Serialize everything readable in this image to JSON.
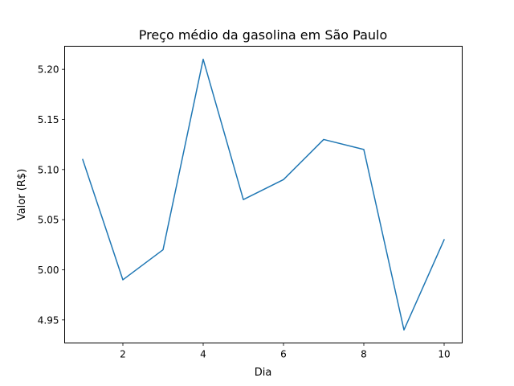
{
  "chart_data": {
    "type": "line",
    "title": "Preço médio da gasolina em São Paulo",
    "xlabel": "Dia",
    "ylabel": "Valor (R$)",
    "xlim": [
      0.55,
      10.45
    ],
    "ylim": [
      4.927,
      5.223
    ],
    "x_ticks": [
      2,
      4,
      6,
      8,
      10
    ],
    "x_tick_labels": [
      "2",
      "4",
      "6",
      "8",
      "10"
    ],
    "y_ticks": [
      4.95,
      5.0,
      5.05,
      5.1,
      5.15,
      5.2
    ],
    "y_tick_labels": [
      "4.95",
      "5.00",
      "5.05",
      "5.10",
      "5.15",
      "5.20"
    ],
    "grid": false,
    "series": [
      {
        "color": "#1f77b4",
        "x": [
          1,
          2,
          3,
          4,
          5,
          6,
          7,
          8,
          9,
          10
        ],
        "y": [
          5.11,
          4.99,
          5.02,
          5.21,
          5.07,
          5.09,
          5.13,
          5.12,
          4.94,
          5.03
        ]
      }
    ]
  }
}
